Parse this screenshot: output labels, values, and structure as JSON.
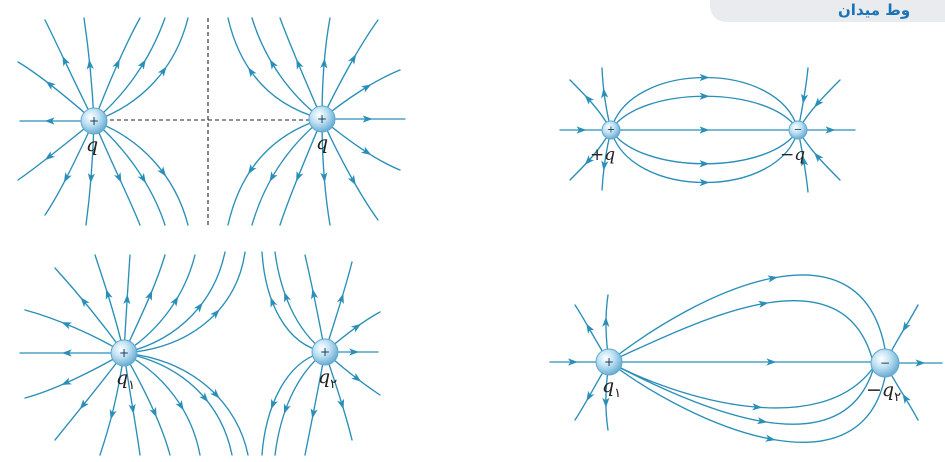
{
  "header": {
    "text": "وط میدان"
  },
  "colors": {
    "field_line": "#2a8fb8",
    "charge_fill": "#a8d5ee",
    "charge_edge": "#5fa7cf"
  },
  "icons": {
    "arrow": "arrowhead-icon"
  },
  "panels": [
    {
      "charges": [
        {
          "sign": "+",
          "label": "q"
        },
        {
          "sign": "+",
          "label": "q"
        }
      ]
    },
    {
      "charges": [
        {
          "sign": "+",
          "label": "+q"
        },
        {
          "sign": "−",
          "label": "−q"
        }
      ]
    },
    {
      "charges": [
        {
          "sign": "+",
          "label": "q",
          "sub": "۱"
        },
        {
          "sign": "+",
          "label": "q",
          "sub": "۲"
        }
      ]
    },
    {
      "charges": [
        {
          "sign": "+",
          "label": "q",
          "sub": "۱"
        },
        {
          "sign": "−",
          "label": "−q",
          "sub": "۲"
        }
      ]
    }
  ]
}
